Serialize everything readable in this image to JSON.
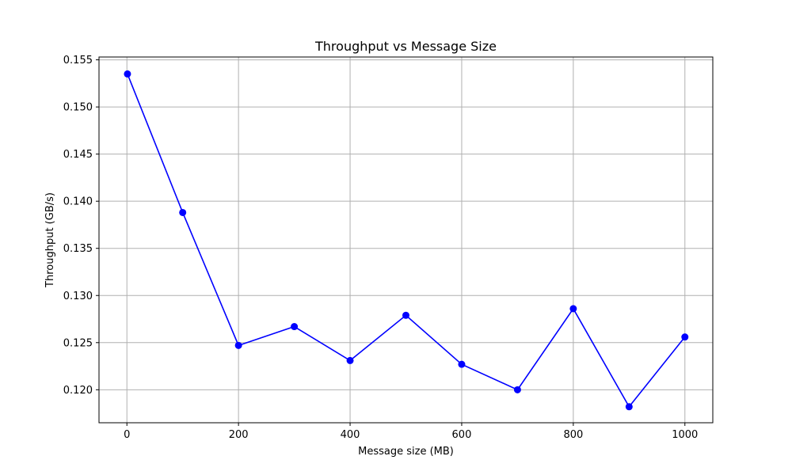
{
  "chart_data": {
    "type": "line",
    "title": "Throughput vs Message Size",
    "xlabel": "Message size (MB)",
    "ylabel": "Throughput (GB/s)",
    "xlim": [
      -50,
      1050
    ],
    "ylim": [
      0.1165,
      0.1553
    ],
    "x_ticks": [
      0,
      200,
      400,
      600,
      800,
      1000
    ],
    "y_ticks": [
      0.12,
      0.125,
      0.13,
      0.135,
      0.14,
      0.145,
      0.15,
      0.155
    ],
    "x_tick_labels": [
      "0",
      "200",
      "400",
      "600",
      "800",
      "1000"
    ],
    "y_tick_labels": [
      "0.120",
      "0.125",
      "0.130",
      "0.135",
      "0.140",
      "0.145",
      "0.150",
      "0.155"
    ],
    "grid": true,
    "series": [
      {
        "color": "#0000ff",
        "marker": "circle",
        "x": [
          1,
          100,
          200,
          300,
          400,
          500,
          600,
          700,
          800,
          900,
          1000
        ],
        "y": [
          0.1535,
          0.1388,
          0.1247,
          0.1267,
          0.1231,
          0.1279,
          0.1227,
          0.12,
          0.1286,
          0.1182,
          0.1256
        ]
      }
    ]
  }
}
